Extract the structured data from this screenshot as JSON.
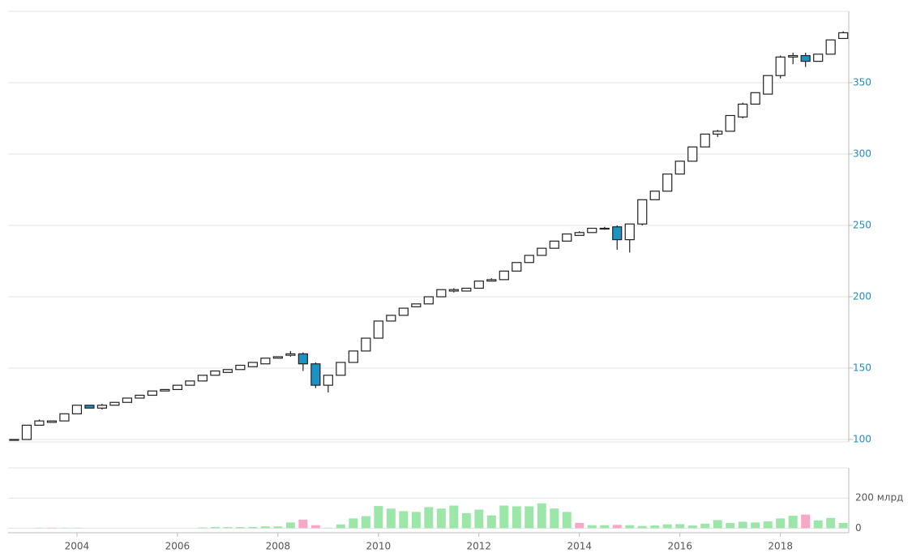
{
  "chart_data": {
    "type": "candlestick",
    "x": [
      2002.75,
      2003,
      2003.25,
      2003.5,
      2003.75,
      2004,
      2004.25,
      2004.5,
      2004.75,
      2005,
      2005.25,
      2005.5,
      2005.75,
      2006,
      2006.25,
      2006.5,
      2006.75,
      2007,
      2007.25,
      2007.5,
      2007.75,
      2008,
      2008.25,
      2008.5,
      2008.75,
      2009,
      2009.25,
      2009.5,
      2009.75,
      2010,
      2010.25,
      2010.5,
      2010.75,
      2011,
      2011.25,
      2011.5,
      2011.75,
      2012,
      2012.25,
      2012.5,
      2012.75,
      2013,
      2013.25,
      2013.5,
      2013.75,
      2014,
      2014.25,
      2014.5,
      2014.75,
      2015,
      2015.25,
      2015.5,
      2015.75,
      2016,
      2016.25,
      2016.5,
      2016.75,
      2017,
      2017.25,
      2017.5,
      2017.75,
      2018,
      2018.25,
      2018.5,
      2018.75,
      2019,
      2019.25
    ],
    "open": [
      100,
      100,
      110,
      112,
      113,
      118,
      124,
      122,
      124,
      126,
      129,
      131,
      134,
      135,
      138,
      141,
      145,
      147,
      149,
      151,
      153,
      157,
      159,
      160,
      153,
      138,
      145,
      154,
      162,
      171,
      183,
      187,
      193,
      195,
      200,
      204,
      204,
      206,
      211,
      212,
      218,
      224,
      229,
      234,
      239,
      243,
      245,
      248,
      249,
      240,
      251,
      268,
      274,
      286,
      295,
      305,
      314,
      316,
      326,
      335,
      342,
      355,
      368,
      369,
      365,
      370,
      381
    ],
    "high": [
      100,
      110,
      114,
      113,
      118,
      124,
      124,
      125,
      126,
      129,
      131,
      134,
      135,
      138,
      141,
      145,
      148,
      149,
      152,
      154,
      157,
      158,
      162,
      161,
      154,
      145,
      154,
      162,
      171,
      183,
      187,
      192,
      195,
      200,
      205,
      206,
      206,
      211,
      213,
      218,
      224,
      229,
      234,
      239,
      244,
      246,
      248,
      249,
      250,
      251,
      268,
      274,
      286,
      295,
      305,
      314,
      317,
      327,
      336,
      343,
      355,
      369,
      371,
      371,
      370,
      380,
      386
    ],
    "low": [
      100,
      100,
      110,
      112,
      113,
      118,
      122,
      121,
      124,
      126,
      129,
      131,
      134,
      135,
      138,
      141,
      145,
      147,
      149,
      151,
      153,
      157,
      158,
      148,
      136,
      133,
      145,
      154,
      162,
      171,
      183,
      187,
      193,
      195,
      200,
      203,
      204,
      206,
      211,
      212,
      218,
      224,
      229,
      234,
      239,
      243,
      245,
      247,
      233,
      231,
      250,
      268,
      274,
      286,
      295,
      305,
      312,
      316,
      325,
      335,
      342,
      353,
      363,
      361,
      365,
      370,
      381
    ],
    "close": [
      100,
      110,
      113,
      113,
      118,
      124,
      122,
      124,
      126,
      129,
      131,
      134,
      135,
      138,
      141,
      145,
      148,
      149,
      152,
      154,
      157,
      158,
      160,
      153,
      138,
      145,
      154,
      162,
      171,
      183,
      187,
      192,
      195,
      200,
      205,
      205,
      206,
      211,
      212,
      218,
      224,
      229,
      234,
      239,
      244,
      245,
      248,
      248,
      240,
      251,
      268,
      274,
      286,
      295,
      305,
      314,
      316,
      327,
      335,
      343,
      355,
      368,
      369,
      365,
      370,
      380,
      385
    ],
    "up_color": "#ffffff",
    "down_color": "#1a94c6",
    "xlim": [
      2002.63,
      2019.36
    ],
    "xticks": [
      2004,
      2006,
      2008,
      2010,
      2012,
      2014,
      2016,
      2018
    ],
    "ylim": [
      100,
      400
    ],
    "yticks": [
      100,
      150,
      200,
      250,
      300,
      350
    ],
    "grid": true,
    "volume": {
      "values": [
        0,
        0,
        3,
        3,
        3,
        3,
        0,
        0,
        0,
        0,
        0,
        0,
        0,
        0,
        0,
        5,
        8,
        7,
        7,
        8,
        12,
        12,
        38,
        57,
        20,
        3,
        25,
        65,
        80,
        147,
        130,
        113,
        108,
        140,
        130,
        150,
        100,
        123,
        85,
        150,
        145,
        145,
        165,
        130,
        108,
        35,
        20,
        20,
        22,
        20,
        15,
        18,
        25,
        27,
        18,
        30,
        54,
        35,
        43,
        38,
        45,
        65,
        83,
        90,
        52,
        68,
        35
      ],
      "colors": [
        "#9de6aa",
        "#9de6aa",
        "#9de6aa",
        "#f6a8c6",
        "#9de6aa",
        "#9de6aa",
        "#9de6aa",
        "#9de6aa",
        "#9de6aa",
        "#9de6aa",
        "#9de6aa",
        "#9de6aa",
        "#9de6aa",
        "#9de6aa",
        "#9de6aa",
        "#9de6aa",
        "#9de6aa",
        "#9de6aa",
        "#9de6aa",
        "#9de6aa",
        "#9de6aa",
        "#9de6aa",
        "#9de6aa",
        "#f6a8c6",
        "#f6a8c6",
        "#9de6aa",
        "#9de6aa",
        "#9de6aa",
        "#9de6aa",
        "#9de6aa",
        "#9de6aa",
        "#9de6aa",
        "#9de6aa",
        "#9de6aa",
        "#9de6aa",
        "#9de6aa",
        "#9de6aa",
        "#9de6aa",
        "#9de6aa",
        "#9de6aa",
        "#9de6aa",
        "#9de6aa",
        "#9de6aa",
        "#9de6aa",
        "#9de6aa",
        "#f6a8c6",
        "#9de6aa",
        "#9de6aa",
        "#f6a8c6",
        "#9de6aa",
        "#9de6aa",
        "#9de6aa",
        "#9de6aa",
        "#9de6aa",
        "#9de6aa",
        "#9de6aa",
        "#9de6aa",
        "#9de6aa",
        "#9de6aa",
        "#9de6aa",
        "#9de6aa",
        "#9de6aa",
        "#9de6aa",
        "#f6a8c6",
        "#9de6aa",
        "#9de6aa",
        "#9de6aa"
      ],
      "ylim": [
        -30,
        400
      ],
      "yticks": [
        0,
        {
          "value": 200,
          "label": "200 млрд"
        }
      ]
    }
  }
}
